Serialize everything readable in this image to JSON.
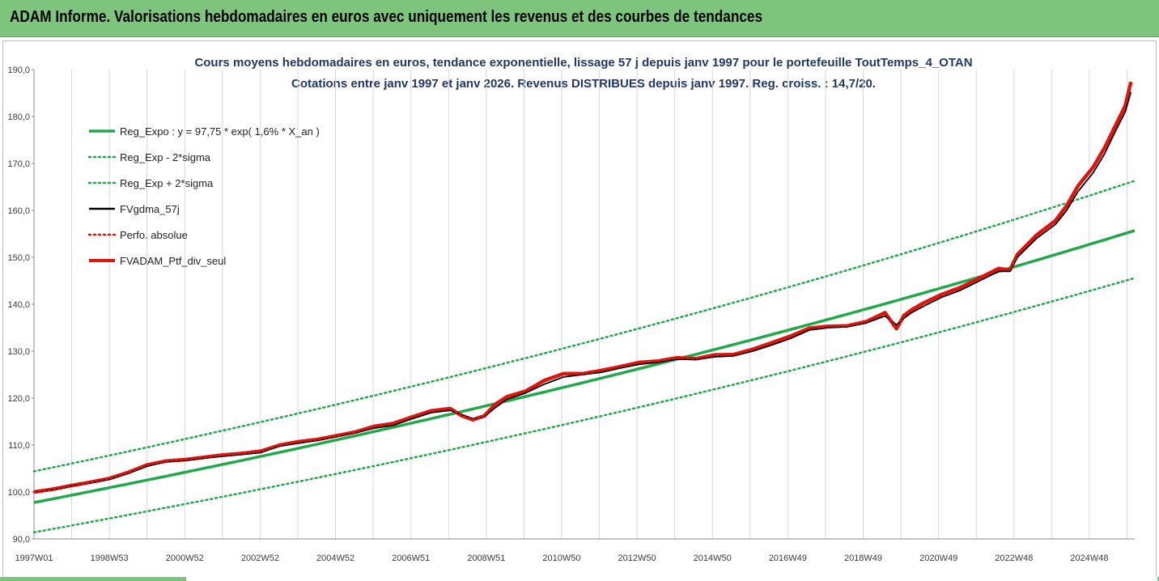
{
  "banner": {
    "title": "ADAM Informe. Valorisations hebdomadaires en euros avec uniquement les revenus et des courbes de tendances"
  },
  "chart_data": {
    "type": "line",
    "title": "Cours moyens hebdomadaires  en euros, tendance exponentielle, lissage 57 j depuis janv 1997 pour le portefeuille ToutTemps_4_OTAN",
    "subtitle": "Cotations entre janv 1997 et janv 2026. Revenus DISTRIBUES depuis janv 1997. Reg. croiss. : 14,7/20.",
    "xlabel": "",
    "ylabel": "",
    "x_tick_labels": [
      "1997W01",
      "1998W53",
      "2000W52",
      "2002W52",
      "2004W52",
      "2006W51",
      "2008W51",
      "2010W50",
      "2012W50",
      "2014W50",
      "2016W49",
      "2018W49",
      "2020W49",
      "2022W48",
      "2024W48"
    ],
    "y_tick_labels": [
      "90,0",
      "100,0",
      "110,0",
      "120,0",
      "130,0",
      "140,0",
      "150,0",
      "160,0",
      "170,0",
      "180,0",
      "190,0"
    ],
    "ylim": [
      90,
      190
    ],
    "xlim": [
      1997.0,
      2026.1
    ],
    "grid": {
      "vertical": true,
      "horizontal": false
    },
    "legend_position": "top-left",
    "x": [
      1997.0,
      1997.5,
      1998.0,
      1998.5,
      1999.0,
      1999.5,
      2000.0,
      2000.5,
      2001.0,
      2001.5,
      2002.0,
      2002.5,
      2003.0,
      2003.5,
      2004.0,
      2004.5,
      2005.0,
      2005.5,
      2006.0,
      2006.5,
      2007.0,
      2007.5,
      2008.0,
      2008.3,
      2008.6,
      2008.9,
      2009.2,
      2009.5,
      2010.0,
      2010.5,
      2011.0,
      2011.5,
      2012.0,
      2012.5,
      2013.0,
      2013.5,
      2014.0,
      2014.5,
      2015.0,
      2015.5,
      2016.0,
      2016.5,
      2017.0,
      2017.5,
      2018.0,
      2018.5,
      2019.0,
      2019.5,
      2019.8,
      2020.0,
      2020.2,
      2020.5,
      2021.0,
      2021.5,
      2022.0,
      2022.5,
      2022.8,
      2023.0,
      2023.5,
      2024.0,
      2024.3,
      2024.6,
      2025.0,
      2025.3,
      2025.6,
      2025.85,
      2026.0
    ],
    "series": [
      {
        "name": "Reg_Expo : y = 97,75 * exp( 1,6% *  X_an )",
        "color": "#21a84a",
        "style": "solid",
        "formula": {
          "a": 97.75,
          "rate": 0.016,
          "origin": 1997.0
        }
      },
      {
        "name": "Reg_Exp - 2*sigma",
        "color": "#21a84a",
        "style": "dotted",
        "formula": {
          "a": 91.4,
          "rate": 0.016,
          "origin": 1997.0
        }
      },
      {
        "name": "Reg_Exp + 2*sigma",
        "color": "#21a84a",
        "style": "dotted",
        "formula": {
          "a": 104.4,
          "rate": 0.016,
          "origin": 1997.0
        }
      },
      {
        "name": "FVgdma_57j",
        "color": "#000000",
        "style": "solid",
        "values": [
          100.0,
          100.5,
          101.3,
          102.0,
          102.7,
          104.0,
          105.5,
          106.5,
          106.7,
          107.2,
          107.6,
          108.0,
          108.4,
          109.8,
          110.4,
          111.0,
          111.8,
          112.6,
          113.6,
          114.2,
          115.6,
          116.9,
          117.4,
          116.5,
          115.6,
          116.0,
          118.0,
          119.7,
          121.1,
          123.0,
          124.5,
          125.0,
          125.5,
          126.4,
          127.2,
          127.6,
          128.3,
          128.2,
          128.8,
          129.0,
          130.0,
          131.3,
          132.7,
          134.5,
          135.0,
          135.2,
          136.0,
          137.5,
          135.6,
          137.0,
          138.2,
          139.5,
          141.5,
          143.0,
          145.0,
          147.0,
          147.0,
          150.0,
          154.0,
          157.0,
          160.0,
          164.0,
          168.0,
          172.0,
          177.0,
          181.0,
          185.2
        ]
      },
      {
        "name": "Perfo. absolue",
        "color": "#e0140e",
        "style": "dotted",
        "values": [
          100.0,
          100.6,
          101.4,
          102.1,
          102.9,
          104.2,
          105.8,
          106.6,
          106.9,
          107.4,
          107.9,
          108.2,
          108.7,
          110.0,
          110.7,
          111.2,
          112.0,
          112.8,
          114.0,
          114.6,
          116.0,
          117.3,
          117.8,
          116.3,
          115.4,
          116.2,
          118.7,
          120.3,
          121.5,
          123.8,
          125.2,
          125.2,
          125.9,
          126.7,
          127.6,
          127.9,
          128.6,
          128.4,
          129.2,
          129.3,
          130.4,
          131.8,
          133.2,
          134.9,
          135.3,
          135.4,
          136.3,
          138.2,
          134.8,
          137.6,
          138.8,
          140.2,
          142.1,
          143.6,
          145.6,
          147.6,
          147.3,
          150.6,
          154.7,
          157.8,
          161.0,
          165.2,
          169.2,
          173.3,
          178.2,
          182.3,
          187.4
        ]
      },
      {
        "name": "FVADAM_Ptf_div_seul",
        "color": "#e0140e",
        "style": "solid",
        "values": [
          100.0,
          100.6,
          101.4,
          102.1,
          102.9,
          104.2,
          105.8,
          106.6,
          106.9,
          107.4,
          107.9,
          108.2,
          108.7,
          110.0,
          110.7,
          111.2,
          112.0,
          112.8,
          114.0,
          114.6,
          116.0,
          117.3,
          117.8,
          116.3,
          115.4,
          116.2,
          118.7,
          120.3,
          121.5,
          123.8,
          125.2,
          125.2,
          125.9,
          126.7,
          127.6,
          127.9,
          128.6,
          128.4,
          129.2,
          129.3,
          130.4,
          131.8,
          133.2,
          134.9,
          135.3,
          135.4,
          136.3,
          138.2,
          134.8,
          137.6,
          138.8,
          140.2,
          142.1,
          143.6,
          145.6,
          147.6,
          147.3,
          150.6,
          154.7,
          157.8,
          161.0,
          165.2,
          169.2,
          173.3,
          178.2,
          182.3,
          187.4
        ]
      }
    ]
  }
}
